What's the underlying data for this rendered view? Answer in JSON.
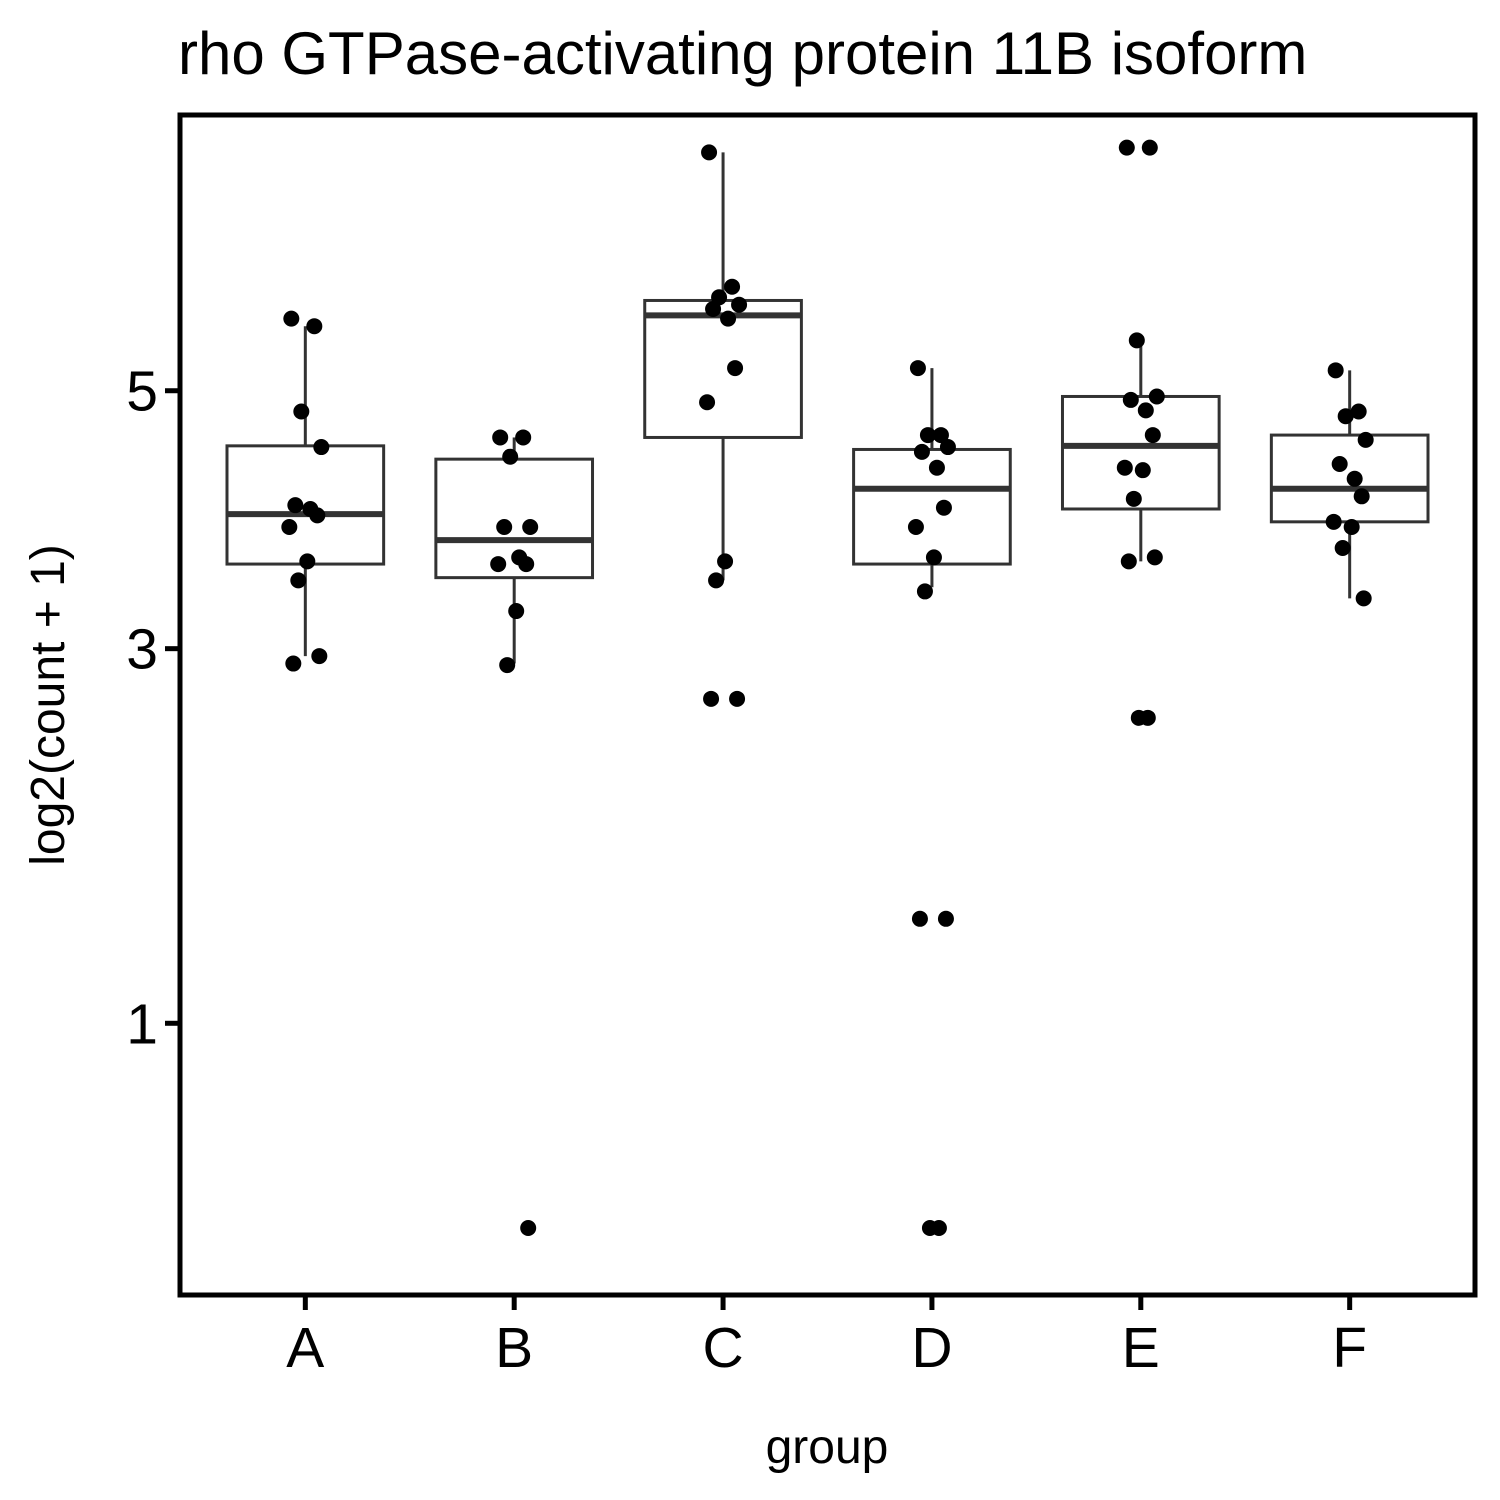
{
  "chart_data": {
    "type": "box",
    "title": "rho GTPase-activating protein 11B isoform",
    "xlabel": "group",
    "ylabel": "log2(count + 1)",
    "y_scale": "sqrt",
    "ylim": [
      0.22,
      7.7
    ],
    "y_ticks": [
      1,
      3,
      5
    ],
    "categories": [
      "A",
      "B",
      "C",
      "D",
      "E",
      "F"
    ],
    "boxes": [
      {
        "group": "A",
        "whisker_low": 2.95,
        "q1": 3.6,
        "median": 3.98,
        "q3": 4.53,
        "whisker_high": 5.58
      },
      {
        "group": "B",
        "whisker_low": 2.9,
        "q1": 3.5,
        "median": 3.78,
        "q3": 4.42,
        "whisker_high": 4.6
      },
      {
        "group": "C",
        "whisker_low": 3.48,
        "q1": 4.6,
        "median": 5.68,
        "q3": 5.82,
        "whisker_high": 7.3
      },
      {
        "group": "D",
        "whisker_low": 3.43,
        "q1": 3.6,
        "median": 4.18,
        "q3": 4.5,
        "whisker_high": 5.2
      },
      {
        "group": "E",
        "whisker_low": 3.62,
        "q1": 4.02,
        "median": 4.53,
        "q3": 4.95,
        "whisker_high": 5.4
      },
      {
        "group": "F",
        "whisker_low": 3.35,
        "q1": 3.92,
        "median": 4.18,
        "q3": 4.62,
        "whisker_high": 5.18
      }
    ],
    "points": [
      {
        "group": "A",
        "values": [
          5.65,
          5.58,
          4.82,
          4.52,
          4.05,
          4.02,
          3.97,
          3.88,
          3.62,
          3.48,
          2.95,
          2.9
        ]
      },
      {
        "group": "B",
        "values": [
          4.6,
          4.6,
          4.44,
          3.88,
          3.88,
          3.65,
          3.6,
          3.6,
          3.26,
          2.89,
          0.36
        ]
      },
      {
        "group": "C",
        "values": [
          7.3,
          5.95,
          5.85,
          5.78,
          5.74,
          5.65,
          5.2,
          4.9,
          3.62,
          3.48,
          2.67,
          2.67
        ]
      },
      {
        "group": "D",
        "values": [
          5.2,
          4.62,
          4.62,
          4.52,
          4.48,
          4.35,
          4.03,
          3.88,
          3.65,
          3.4,
          1.45,
          1.45,
          0.36,
          0.36
        ]
      },
      {
        "group": "E",
        "values": [
          7.35,
          7.35,
          5.45,
          4.95,
          4.92,
          4.83,
          4.62,
          4.35,
          4.33,
          4.1,
          3.65,
          3.62,
          2.55,
          2.55
        ]
      },
      {
        "group": "F",
        "values": [
          5.18,
          4.82,
          4.78,
          4.58,
          4.38,
          4.26,
          4.12,
          3.92,
          3.88,
          3.72,
          3.35
        ]
      }
    ]
  }
}
